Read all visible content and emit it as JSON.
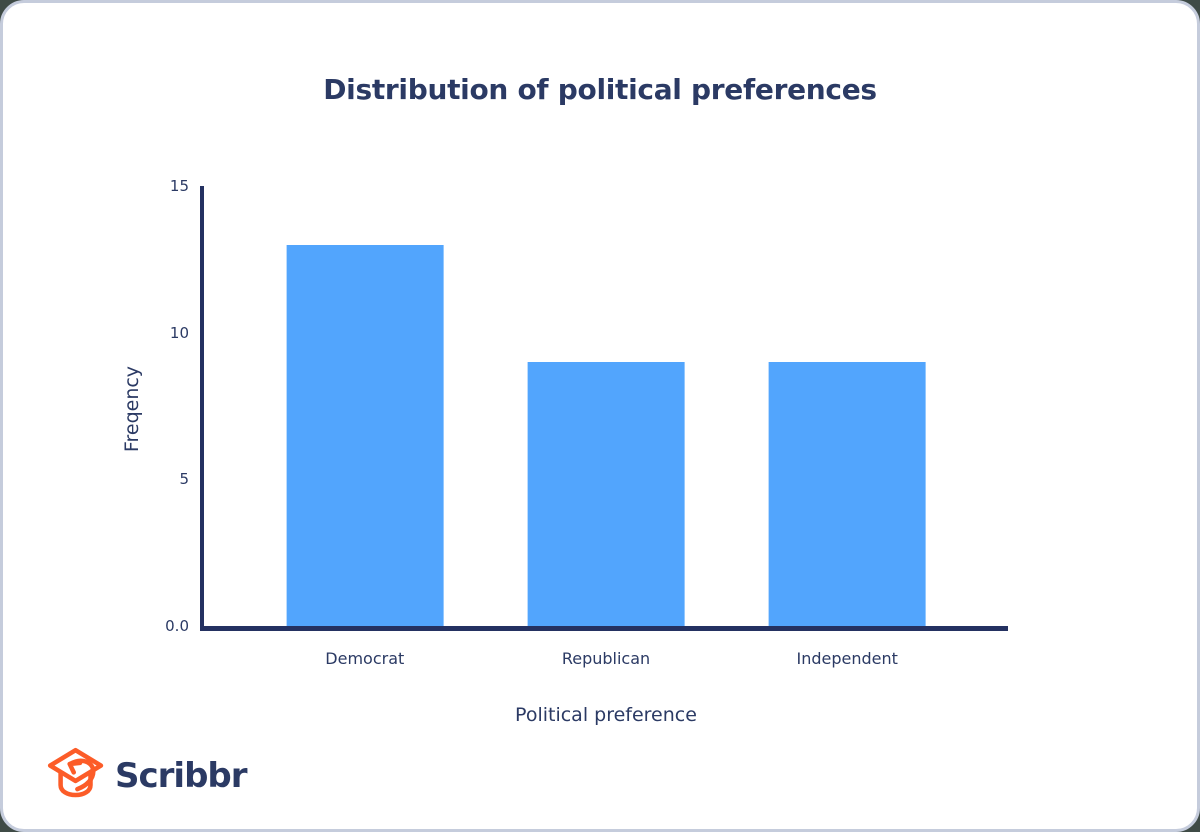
{
  "page": {
    "background_color": "#3f4b46",
    "card_background": "#ffffff",
    "card_border_color": "#c5ccdc"
  },
  "chart_data": {
    "type": "bar",
    "title": "Distribution of political preferences",
    "xlabel": "Political preference",
    "ylabel": "Freqency",
    "categories": [
      "Democrat",
      "Republican",
      "Independent"
    ],
    "values": [
      13,
      9,
      9
    ],
    "ylim": [
      0,
      15
    ],
    "yticks": [
      {
        "value": 0,
        "label": "0.0"
      },
      {
        "value": 5,
        "label": "5"
      },
      {
        "value": 10,
        "label": "10"
      },
      {
        "value": 15,
        "label": "15"
      }
    ],
    "grid": false,
    "legend": null,
    "bar_color": "#52a5fd",
    "axis_color": "#243161",
    "text_color": "#2b3a64"
  },
  "logo": {
    "wordmark": "Scribbr",
    "icon": "graduation-cap-arrow-icon",
    "icon_color": "#fc5c28",
    "wordmark_color": "#2b3a64"
  }
}
